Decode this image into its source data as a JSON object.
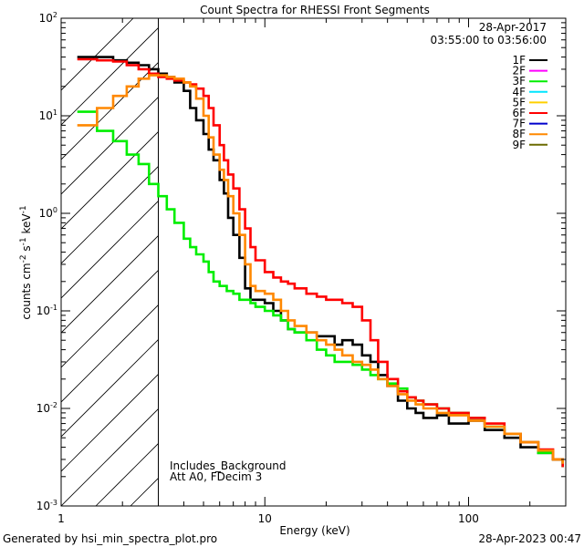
{
  "chart_data": {
    "type": "line",
    "title": "Count Spectra for RHESSI Front Segments",
    "xlabel": "Energy (keV)",
    "ylabel": "counts cm",
    "ylabel_exp1": "-2",
    "ylabel_mid": " s",
    "ylabel_exp2": "-1",
    "ylabel_end": " keV",
    "ylabel_exp3": "-1",
    "x_scale": "log",
    "y_scale": "log",
    "xlim": [
      1,
      300
    ],
    "ylim": [
      0.001,
      100
    ],
    "x_ticks": [
      {
        "value": 10,
        "label": "10"
      },
      {
        "value": 100,
        "label": "100"
      }
    ],
    "x_tick_one": {
      "value": 1,
      "label": "1"
    },
    "y_ticks": [
      {
        "value": 0.001,
        "base": "10",
        "exp": "-3"
      },
      {
        "value": 0.01,
        "base": "10",
        "exp": "-2"
      },
      {
        "value": 0.1,
        "base": "10",
        "exp": "-1"
      },
      {
        "value": 1,
        "base": "10",
        "exp": "0"
      },
      {
        "value": 10,
        "base": "10",
        "exp": "1"
      },
      {
        "value": 100,
        "base": "10",
        "exp": "2"
      }
    ],
    "hatched_region_max_energy": 3,
    "legend": {
      "position": "top-right",
      "date": "28-Apr-2017",
      "time_range": "03:55:00 to 03:56:00",
      "entries": [
        {
          "label": "1F",
          "color": "#000000"
        },
        {
          "label": "2F",
          "color": "#ff00ff"
        },
        {
          "label": "3F",
          "color": "#00ee00"
        },
        {
          "label": "4F",
          "color": "#00e5ff"
        },
        {
          "label": "5F",
          "color": "#ffd000"
        },
        {
          "label": "6F",
          "color": "#ff0000"
        },
        {
          "label": "7F",
          "color": "#0000cc"
        },
        {
          "label": "8F",
          "color": "#ff8800"
        },
        {
          "label": "9F",
          "color": "#6b6b00"
        }
      ]
    },
    "annotations": [
      "Includes_Background",
      "Att A0, FDecim 3"
    ],
    "series": [
      {
        "name": "1F",
        "color": "#000000",
        "x": [
          1.2,
          1.5,
          1.8,
          2.1,
          2.4,
          2.7,
          3.0,
          3.3,
          3.6,
          4.0,
          4.3,
          4.6,
          5.0,
          5.3,
          5.6,
          6.0,
          6.3,
          6.6,
          7.0,
          7.5,
          8.0,
          8.5,
          9.0,
          10,
          11,
          12,
          13,
          14,
          16,
          18,
          20,
          22,
          24,
          27,
          30,
          33,
          36,
          40,
          45,
          50,
          55,
          60,
          70,
          80,
          100,
          120,
          150,
          180,
          220,
          260,
          290
        ],
        "y": [
          40,
          40,
          37,
          35,
          33,
          30,
          27,
          25,
          22,
          18,
          12,
          9,
          6.5,
          4.5,
          3.5,
          2.2,
          1.6,
          0.9,
          0.6,
          0.35,
          0.17,
          0.13,
          0.13,
          0.12,
          0.1,
          0.08,
          0.065,
          0.06,
          0.06,
          0.055,
          0.055,
          0.045,
          0.05,
          0.045,
          0.035,
          0.03,
          0.022,
          0.017,
          0.012,
          0.01,
          0.009,
          0.008,
          0.0085,
          0.007,
          0.0075,
          0.006,
          0.005,
          0.004,
          0.0035,
          0.003,
          0.0025
        ]
      },
      {
        "name": "3F",
        "color": "#00ee00",
        "x": [
          1.2,
          1.5,
          1.8,
          2.1,
          2.4,
          2.7,
          3.0,
          3.3,
          3.6,
          4.0,
          4.3,
          4.6,
          5.0,
          5.3,
          5.6,
          6.0,
          6.5,
          7.0,
          7.5,
          8.0,
          8.5,
          9.0,
          10,
          11,
          12,
          13,
          14,
          16,
          18,
          20,
          22,
          24,
          27,
          30,
          33,
          36,
          40,
          45,
          50,
          55,
          60,
          70,
          80,
          100,
          120,
          150,
          180,
          220,
          260,
          290
        ],
        "y": [
          11,
          7,
          5.5,
          4,
          3.2,
          2,
          1.5,
          1.1,
          0.8,
          0.55,
          0.45,
          0.38,
          0.32,
          0.25,
          0.2,
          0.18,
          0.16,
          0.15,
          0.13,
          0.13,
          0.12,
          0.11,
          0.1,
          0.09,
          0.08,
          0.065,
          0.06,
          0.05,
          0.04,
          0.035,
          0.03,
          0.03,
          0.028,
          0.025,
          0.022,
          0.02,
          0.018,
          0.016,
          0.013,
          0.012,
          0.011,
          0.01,
          0.009,
          0.008,
          0.0065,
          0.0055,
          0.0045,
          0.0035,
          0.003,
          0.0025
        ]
      },
      {
        "name": "6F",
        "color": "#ff0000",
        "x": [
          1.2,
          1.5,
          1.8,
          2.1,
          2.4,
          2.7,
          3.0,
          3.3,
          3.6,
          4.0,
          4.3,
          4.6,
          5.0,
          5.3,
          5.6,
          6.0,
          6.3,
          6.6,
          7.0,
          7.5,
          8.0,
          8.5,
          9.0,
          10,
          11,
          12,
          13,
          14,
          16,
          18,
          20,
          22,
          24,
          27,
          30,
          33,
          36,
          40,
          45,
          50,
          55,
          60,
          70,
          80,
          100,
          120,
          150,
          180,
          220,
          260,
          290
        ],
        "y": [
          38,
          37,
          36,
          33,
          30,
          27,
          25,
          24,
          23,
          22,
          21,
          19,
          16,
          12,
          8,
          5,
          3.5,
          2.5,
          1.8,
          1.1,
          0.7,
          0.45,
          0.33,
          0.25,
          0.22,
          0.2,
          0.19,
          0.17,
          0.15,
          0.14,
          0.13,
          0.13,
          0.12,
          0.11,
          0.08,
          0.05,
          0.03,
          0.02,
          0.015,
          0.013,
          0.012,
          0.011,
          0.01,
          0.009,
          0.008,
          0.007,
          0.0055,
          0.0045,
          0.0038,
          0.003,
          0.0025
        ]
      },
      {
        "name": "8F",
        "color": "#ff8800",
        "x": [
          1.2,
          1.5,
          1.8,
          2.1,
          2.4,
          2.7,
          3.0,
          3.3,
          3.6,
          4.0,
          4.3,
          4.6,
          5.0,
          5.3,
          5.6,
          6.0,
          6.3,
          6.6,
          7.0,
          7.5,
          8.0,
          8.5,
          9.0,
          10,
          11,
          12,
          13,
          14,
          16,
          18,
          20,
          22,
          24,
          27,
          30,
          33,
          36,
          40,
          45,
          50,
          55,
          60,
          70,
          80,
          100,
          120,
          150,
          180,
          220,
          260,
          290
        ],
        "y": [
          8,
          12,
          16,
          20,
          24,
          26,
          26,
          25,
          24,
          22,
          20,
          15,
          10,
          6,
          4,
          2.8,
          2.2,
          1.5,
          1,
          0.6,
          0.3,
          0.18,
          0.16,
          0.15,
          0.13,
          0.1,
          0.08,
          0.07,
          0.06,
          0.05,
          0.045,
          0.04,
          0.035,
          0.03,
          0.028,
          0.025,
          0.02,
          0.017,
          0.014,
          0.012,
          0.011,
          0.01,
          0.009,
          0.0085,
          0.0075,
          0.0065,
          0.0055,
          0.0045,
          0.0037,
          0.003,
          0.0027
        ]
      }
    ]
  },
  "footer": {
    "generated_by": "Generated by hsi_min_spectra_plot.pro",
    "generated_at": "28-Apr-2023 00:47"
  }
}
